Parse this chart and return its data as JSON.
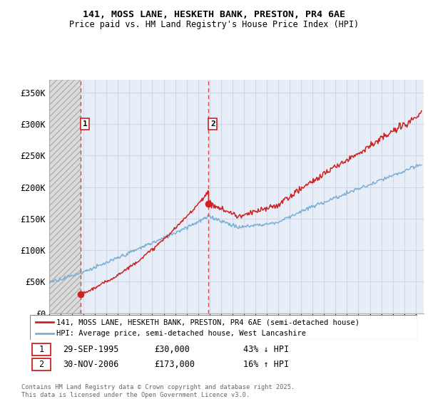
{
  "title_line1": "141, MOSS LANE, HESKETH BANK, PRESTON, PR4 6AE",
  "title_line2": "Price paid vs. HM Land Registry's House Price Index (HPI)",
  "ylim": [
    0,
    370000
  ],
  "yticks": [
    0,
    50000,
    100000,
    150000,
    200000,
    250000,
    300000,
    350000
  ],
  "ytick_labels": [
    "£0",
    "£50K",
    "£100K",
    "£150K",
    "£200K",
    "£250K",
    "£300K",
    "£350K"
  ],
  "sale1_date": "29-SEP-1995",
  "sale1_price": 30000,
  "sale1_x_year": 1995.75,
  "sale2_date": "30-NOV-2006",
  "sale2_price": 173000,
  "sale2_x_year": 2006.92,
  "sale1_hpi_diff": "43% ↓ HPI",
  "sale2_hpi_diff": "16% ↑ HPI",
  "legend_label1": "141, MOSS LANE, HESKETH BANK, PRESTON, PR4 6AE (semi-detached house)",
  "legend_label2": "HPI: Average price, semi-detached house, West Lancashire",
  "footer": "Contains HM Land Registry data © Crown copyright and database right 2025.\nThis data is licensed under the Open Government Licence v3.0.",
  "hpi_color": "#7bafd4",
  "prop_color": "#cc2222",
  "dashed_color": "#dd4444",
  "grid_color": "#d0d8e8",
  "bg_plot_color": "#e8eef8",
  "bg_hatch_color": "#dcdcdc",
  "xmin": 1993.0,
  "xmax": 2025.7
}
